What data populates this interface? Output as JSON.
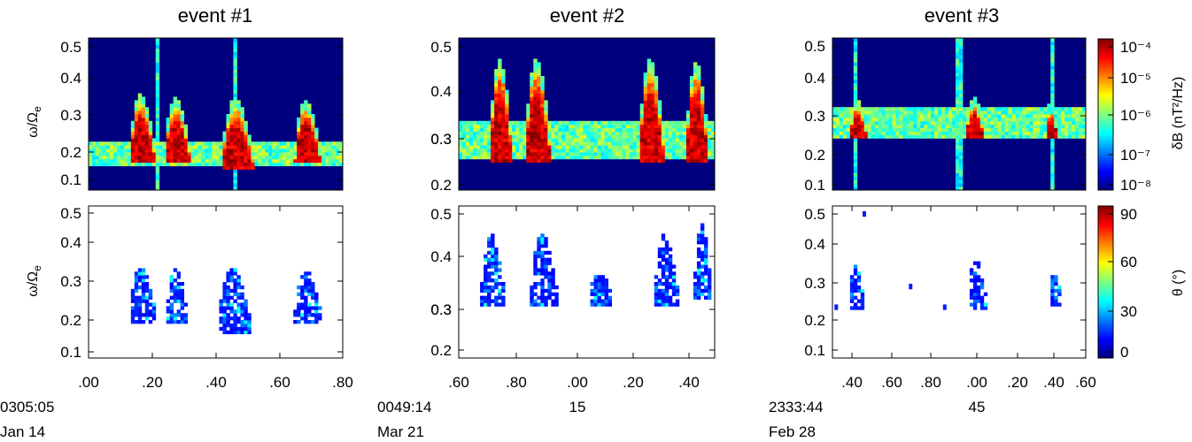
{
  "chart_data": [
    {
      "type": "heatmap",
      "title": "event #1",
      "quantity": "wave power spectral density",
      "ylabel": "ω/Ω",
      "ylabel_sub": "e",
      "ylim": [
        0.1,
        0.52
      ],
      "yticks": [
        "0.1",
        "0.2",
        "0.3",
        "0.4",
        "0.5"
      ],
      "xlim": [
        0.0,
        0.8
      ],
      "blobs": [
        {
          "t": 0.17,
          "f_low": 0.19,
          "f_high": 0.335,
          "width": 0.08
        },
        {
          "t": 0.28,
          "f_low": 0.19,
          "f_high": 0.325,
          "width": 0.08
        },
        {
          "t": 0.47,
          "f_low": 0.17,
          "f_high": 0.325,
          "width": 0.1
        },
        {
          "t": 0.69,
          "f_low": 0.19,
          "f_high": 0.32,
          "width": 0.08
        }
      ],
      "background_band": [
        0.17,
        0.23
      ],
      "spikes": [
        0.22,
        0.46
      ]
    },
    {
      "type": "heatmap",
      "title": "event #2",
      "quantity": "wave power spectral density",
      "ylim": [
        0.19,
        0.52
      ],
      "yticks": [
        "0.2",
        "0.3",
        "0.3",
        "0.4",
        "0.5"
      ],
      "xlim": [
        0.6,
        1.5
      ],
      "blobs": [
        {
          "t": 0.75,
          "f_low": 0.26,
          "f_high": 0.445,
          "width": 0.08
        },
        {
          "t": 0.88,
          "f_low": 0.26,
          "f_high": 0.445,
          "width": 0.09
        },
        {
          "t": 1.28,
          "f_low": 0.26,
          "f_high": 0.445,
          "width": 0.09
        },
        {
          "t": 1.44,
          "f_low": 0.26,
          "f_high": 0.44,
          "width": 0.08
        }
      ],
      "background_band": [
        0.26,
        0.34
      ],
      "spikes": []
    },
    {
      "type": "heatmap",
      "title": "event #3",
      "quantity": "wave power spectral density",
      "ylim": [
        0.08,
        0.52
      ],
      "yticks": [
        "0.1",
        "0.2",
        "0.3",
        "0.4",
        "0.5"
      ],
      "xlim": [
        0.34,
        1.6
      ],
      "blobs": [
        {
          "t": 0.47,
          "f_low": 0.24,
          "f_high": 0.315,
          "width": 0.08
        },
        {
          "t": 1.05,
          "f_low": 0.24,
          "f_high": 0.32,
          "width": 0.09
        },
        {
          "t": 1.43,
          "f_low": 0.24,
          "f_high": 0.305,
          "width": 0.06
        }
      ],
      "background_band": [
        0.235,
        0.315
      ],
      "spikes": [
        0.46,
        0.97,
        1.43
      ]
    },
    {
      "type": "scatter",
      "quantity": "wave normal angle",
      "ylabel": "ω/Ω",
      "ylabel_sub": "e",
      "ylim": [
        0.08,
        0.52
      ],
      "yticks": [
        "0.1",
        "0.2",
        "0.3",
        "0.4",
        "0.5"
      ],
      "xlim": [
        0.0,
        0.8
      ],
      "xticks": [
        ".00",
        ".20",
        ".40",
        ".60",
        ".80"
      ],
      "time_label": "0305:05",
      "date_label": "Jan 14",
      "blobs": [
        {
          "t": 0.17,
          "f_low": 0.19,
          "f_high": 0.315,
          "width": 0.08
        },
        {
          "t": 0.28,
          "f_low": 0.19,
          "f_high": 0.31,
          "width": 0.07
        },
        {
          "t": 0.46,
          "f_low": 0.165,
          "f_high": 0.315,
          "width": 0.1
        },
        {
          "t": 0.69,
          "f_low": 0.19,
          "f_high": 0.305,
          "width": 0.08
        }
      ]
    },
    {
      "type": "scatter",
      "quantity": "wave normal angle",
      "ylim": [
        0.19,
        0.52
      ],
      "yticks": [
        "0.2",
        "0.3",
        "0.3",
        "0.4",
        "0.5"
      ],
      "xlim": [
        0.6,
        1.5
      ],
      "xticks": [
        ".60",
        ".80",
        ".00",
        ".20",
        ".40"
      ],
      "time_label": "0049:14",
      "minute_label": "15",
      "date_label": "Mar 21",
      "blobs": [
        {
          "t": 0.72,
          "f_low": 0.31,
          "f_high": 0.43,
          "width": 0.08
        },
        {
          "t": 0.9,
          "f_low": 0.31,
          "f_high": 0.435,
          "width": 0.09
        },
        {
          "t": 1.1,
          "f_low": 0.31,
          "f_high": 0.34,
          "width": 0.08
        },
        {
          "t": 1.33,
          "f_low": 0.31,
          "f_high": 0.43,
          "width": 0.08
        },
        {
          "t": 1.46,
          "f_low": 0.33,
          "f_high": 0.45,
          "width": 0.06
        }
      ]
    },
    {
      "type": "scatter",
      "quantity": "wave normal angle",
      "ylim": [
        0.08,
        0.52
      ],
      "yticks": [
        "0.1",
        "0.2",
        "0.3",
        "0.4",
        "0.5"
      ],
      "xlim": [
        0.34,
        1.6
      ],
      "xticks": [
        ".40",
        ".60",
        ".80",
        ".00",
        ".20",
        ".40",
        ".60"
      ],
      "time_label": "2333:44",
      "minute_label": "45",
      "date_label": "Feb 28",
      "blobs": [
        {
          "t": 0.46,
          "f_low": 0.23,
          "f_high": 0.32,
          "width": 0.07
        },
        {
          "t": 1.06,
          "f_low": 0.23,
          "f_high": 0.335,
          "width": 0.09
        },
        {
          "t": 1.45,
          "f_low": 0.24,
          "f_high": 0.305,
          "width": 0.05
        }
      ],
      "isolated": [
        [
          0.49,
          0.505
        ],
        [
          0.72,
          0.295
        ],
        [
          0.35,
          0.235
        ],
        [
          0.89,
          0.235
        ]
      ]
    }
  ],
  "colorbar_power": {
    "label": "δB (nT²/Hz)",
    "ticks": [
      "10⁻⁴",
      "10⁻⁵",
      "10⁻⁶",
      "10⁻⁷",
      "10⁻⁸"
    ],
    "scale": "log",
    "range": [
      1e-08,
      0.0001
    ],
    "colormap": "jet"
  },
  "colorbar_angle": {
    "label": "θ (°)",
    "ticks": [
      "90",
      "60",
      "30",
      "0"
    ],
    "range": [
      0,
      90
    ],
    "colormap": "jet"
  },
  "colors": {
    "background_low": "#00007f",
    "high": "#b40000",
    "axis": "#000000"
  }
}
